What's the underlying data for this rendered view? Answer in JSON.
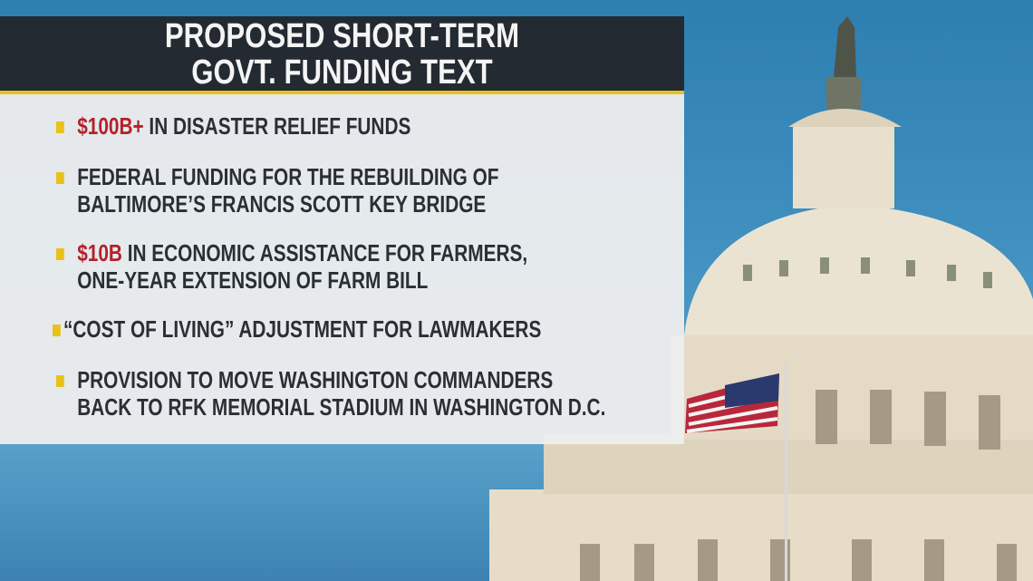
{
  "header": {
    "line1": "PROPOSED SHORT-TERM",
    "line2": "GOVT. FUNDING TEXT"
  },
  "items": [
    {
      "highlight": "$100B+",
      "line1": " IN DISASTER RELIEF FUNDS",
      "line2": ""
    },
    {
      "highlight": "",
      "line1": "FEDERAL FUNDING FOR THE REBUILDING OF",
      "line2": "BALTIMORE’S FRANCIS SCOTT KEY BRIDGE"
    },
    {
      "highlight": "$10B",
      "line1": " IN ECONOMIC ASSISTANCE FOR FARMERS,",
      "line2": "ONE-YEAR EXTENSION OF FARM BILL"
    },
    {
      "highlight": "",
      "line1": "“COST OF LIVING” ADJUSTMENT FOR LAWMAKERS",
      "line2": ""
    },
    {
      "highlight": "",
      "line1": "PROVISION TO MOVE WASHINGTON COMMANDERS",
      "line2": "BACK TO RFK MEMORIAL STADIUM IN WASHINGTON D.C."
    }
  ],
  "colors": {
    "header_bg": "#232a31",
    "accent": "#e8c21a",
    "highlight": "#b5202a",
    "sky": "#3f8fbf"
  }
}
